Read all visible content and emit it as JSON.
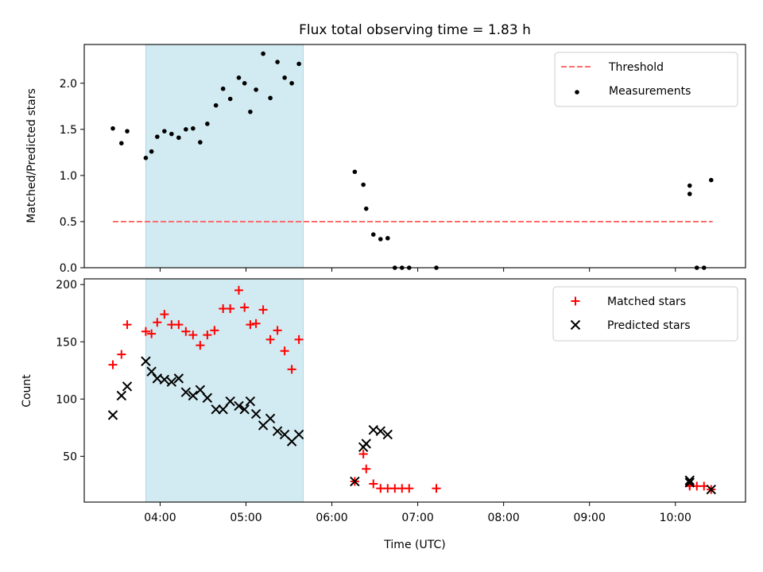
{
  "figure": {
    "title": "Flux total observing time = 1.83 h",
    "xlabel": "Time (UTC)"
  },
  "chart_data": [
    {
      "type": "scatter",
      "ylabel": "Matched/Predicted stars",
      "xlim": [
        "03:07",
        "10:49"
      ],
      "ylim": [
        0,
        2.42
      ],
      "yticks": [
        "0.0",
        "0.5",
        "1.0",
        "1.5",
        "2.0"
      ],
      "grid": false,
      "legend_position": "top-right",
      "shaded_interval": {
        "x0": "03:50",
        "x1": "05:40",
        "color": "#add8e6"
      },
      "threshold": {
        "name": "Threshold",
        "y": 0.5,
        "x0": "03:27",
        "x1": "10:26",
        "color": "#ff6b6b",
        "style": "dashed"
      },
      "series": [
        {
          "name": "Measurements",
          "color": "#000000",
          "marker": "dot",
          "points": [
            [
              "03:27",
              1.51
            ],
            [
              "03:33",
              1.35
            ],
            [
              "03:37",
              1.48
            ],
            [
              "03:50",
              1.19
            ],
            [
              "03:54",
              1.26
            ],
            [
              "03:58",
              1.42
            ],
            [
              "04:03",
              1.48
            ],
            [
              "04:08",
              1.45
            ],
            [
              "04:13",
              1.41
            ],
            [
              "04:18",
              1.5
            ],
            [
              "04:23",
              1.51
            ],
            [
              "04:28",
              1.36
            ],
            [
              "04:33",
              1.56
            ],
            [
              "04:39",
              1.76
            ],
            [
              "04:44",
              1.94
            ],
            [
              "04:49",
              1.83
            ],
            [
              "04:55",
              2.06
            ],
            [
              "04:59",
              2.0
            ],
            [
              "05:03",
              1.69
            ],
            [
              "05:07",
              1.93
            ],
            [
              "05:12",
              2.32
            ],
            [
              "05:17",
              1.84
            ],
            [
              "05:22",
              2.23
            ],
            [
              "05:27",
              2.06
            ],
            [
              "05:32",
              2.0
            ],
            [
              "05:37",
              2.21
            ],
            [
              "06:16",
              1.04
            ],
            [
              "06:22",
              0.9
            ],
            [
              "06:24",
              0.64
            ],
            [
              "06:29",
              0.36
            ],
            [
              "06:34",
              0.31
            ],
            [
              "06:39",
              0.32
            ],
            [
              "06:44",
              0.0
            ],
            [
              "06:49",
              0.0
            ],
            [
              "06:54",
              0.0
            ],
            [
              "07:13",
              0.0
            ],
            [
              "10:10",
              0.8
            ],
            [
              "10:10",
              0.89
            ],
            [
              "10:15",
              0.0
            ],
            [
              "10:20",
              0.0
            ],
            [
              "10:25",
              0.95
            ]
          ]
        }
      ]
    },
    {
      "type": "scatter",
      "ylabel": "Count",
      "xlim": [
        "03:07",
        "10:49"
      ],
      "ylim": [
        10,
        205
      ],
      "yticks": [
        "50",
        "100",
        "150",
        "200"
      ],
      "xticks": [
        "04:00",
        "05:00",
        "06:00",
        "07:00",
        "08:00",
        "09:00",
        "10:00"
      ],
      "grid": false,
      "legend_position": "top-right",
      "shaded_interval": {
        "x0": "03:50",
        "x1": "05:40",
        "color": "#add8e6"
      },
      "series": [
        {
          "name": "Matched stars",
          "color": "#ff0000",
          "marker": "plus",
          "points": [
            [
              "03:27",
              130
            ],
            [
              "03:33",
              139
            ],
            [
              "03:37",
              165
            ],
            [
              "03:50",
              159
            ],
            [
              "03:54",
              157
            ],
            [
              "03:58",
              167
            ],
            [
              "04:03",
              174
            ],
            [
              "04:08",
              165
            ],
            [
              "04:13",
              165
            ],
            [
              "04:18",
              159
            ],
            [
              "04:23",
              156
            ],
            [
              "04:28",
              147
            ],
            [
              "04:33",
              156
            ],
            [
              "04:38",
              160
            ],
            [
              "04:44",
              179
            ],
            [
              "04:49",
              179
            ],
            [
              "04:55",
              195
            ],
            [
              "04:59",
              180
            ],
            [
              "05:03",
              165
            ],
            [
              "05:07",
              166
            ],
            [
              "05:12",
              178
            ],
            [
              "05:17",
              152
            ],
            [
              "05:22",
              160
            ],
            [
              "05:27",
              142
            ],
            [
              "05:32",
              126
            ],
            [
              "05:37",
              152
            ],
            [
              "06:16",
              28
            ],
            [
              "06:22",
              52
            ],
            [
              "06:24",
              39
            ],
            [
              "06:29",
              26
            ],
            [
              "06:34",
              22
            ],
            [
              "06:39",
              22
            ],
            [
              "06:44",
              22
            ],
            [
              "06:49",
              22
            ],
            [
              "06:54",
              22
            ],
            [
              "07:13",
              22
            ],
            [
              "10:10",
              24
            ],
            [
              "10:10",
              25
            ],
            [
              "10:15",
              24
            ],
            [
              "10:20",
              24
            ],
            [
              "10:25",
              21
            ]
          ]
        },
        {
          "name": "Predicted stars",
          "color": "#000000",
          "marker": "x",
          "points": [
            [
              "03:27",
              86
            ],
            [
              "03:33",
              103
            ],
            [
              "03:37",
              111
            ],
            [
              "03:50",
              133
            ],
            [
              "03:54",
              124
            ],
            [
              "03:58",
              118
            ],
            [
              "04:03",
              117
            ],
            [
              "04:08",
              115
            ],
            [
              "04:13",
              118
            ],
            [
              "04:18",
              106
            ],
            [
              "04:23",
              103
            ],
            [
              "04:28",
              108
            ],
            [
              "04:33",
              101
            ],
            [
              "04:39",
              91
            ],
            [
              "04:44",
              91
            ],
            [
              "04:49",
              98
            ],
            [
              "04:55",
              94
            ],
            [
              "04:59",
              91
            ],
            [
              "05:03",
              98
            ],
            [
              "05:07",
              87
            ],
            [
              "05:12",
              77
            ],
            [
              "05:17",
              83
            ],
            [
              "05:22",
              72
            ],
            [
              "05:27",
              69
            ],
            [
              "05:32",
              63
            ],
            [
              "05:37",
              69
            ],
            [
              "06:16",
              28
            ],
            [
              "06:22",
              58
            ],
            [
              "06:24",
              61
            ],
            [
              "06:29",
              73
            ],
            [
              "06:34",
              72
            ],
            [
              "06:39",
              69
            ],
            [
              "10:10",
              29
            ],
            [
              "10:10",
              27
            ],
            [
              "10:25",
              21
            ]
          ]
        }
      ]
    }
  ]
}
